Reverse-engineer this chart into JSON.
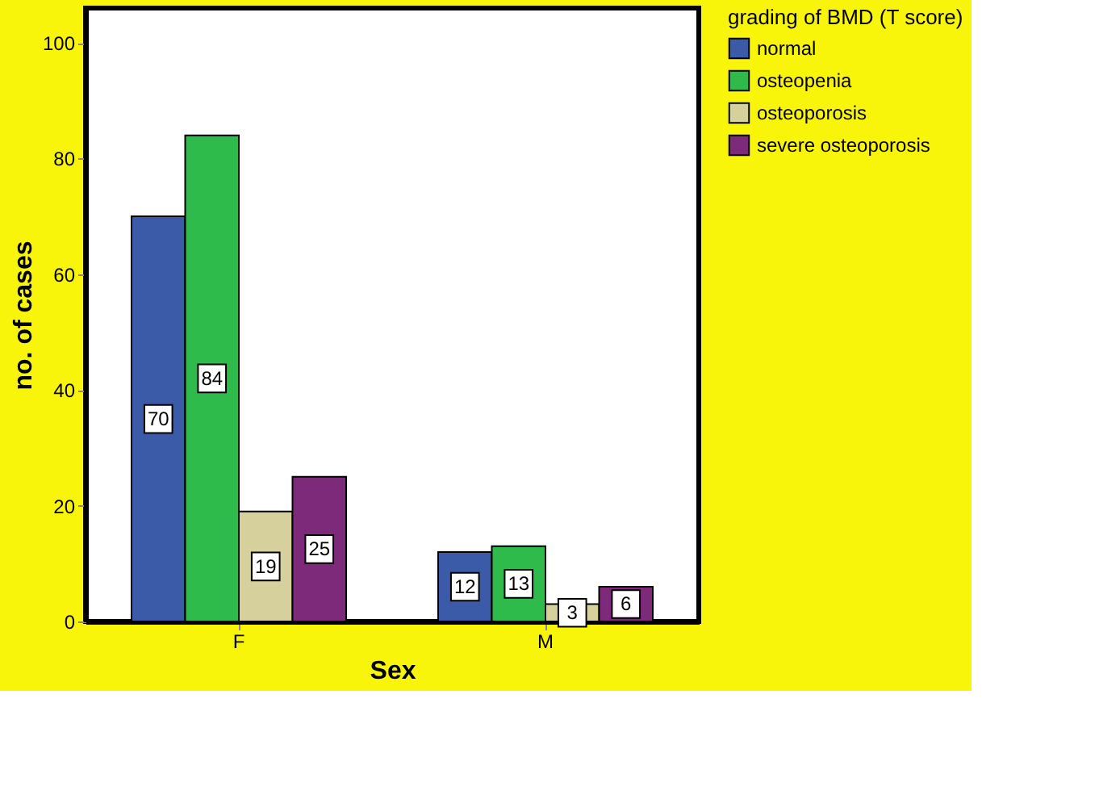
{
  "chart_data": {
    "type": "bar",
    "xlabel": "Sex",
    "ylabel": "no. of cases",
    "legend_title": "grading of BMD (T score)",
    "categories": [
      "F",
      "M"
    ],
    "series": [
      {
        "name": "normal",
        "color": "#3b5aa8",
        "values": [
          70,
          12
        ]
      },
      {
        "name": "osteopenia",
        "color": "#2fbb4b",
        "values": [
          84,
          13
        ]
      },
      {
        "name": "osteoporosis",
        "color": "#d5d09c",
        "values": [
          19,
          3
        ]
      },
      {
        "name": "severe osteoporosis",
        "color": "#7d2a7b",
        "values": [
          25,
          6
        ]
      }
    ],
    "ylim": [
      0,
      106
    ],
    "yticks": [
      0,
      20,
      40,
      60,
      80,
      100
    ],
    "grid": false,
    "legend": "right",
    "data_labels": true
  }
}
